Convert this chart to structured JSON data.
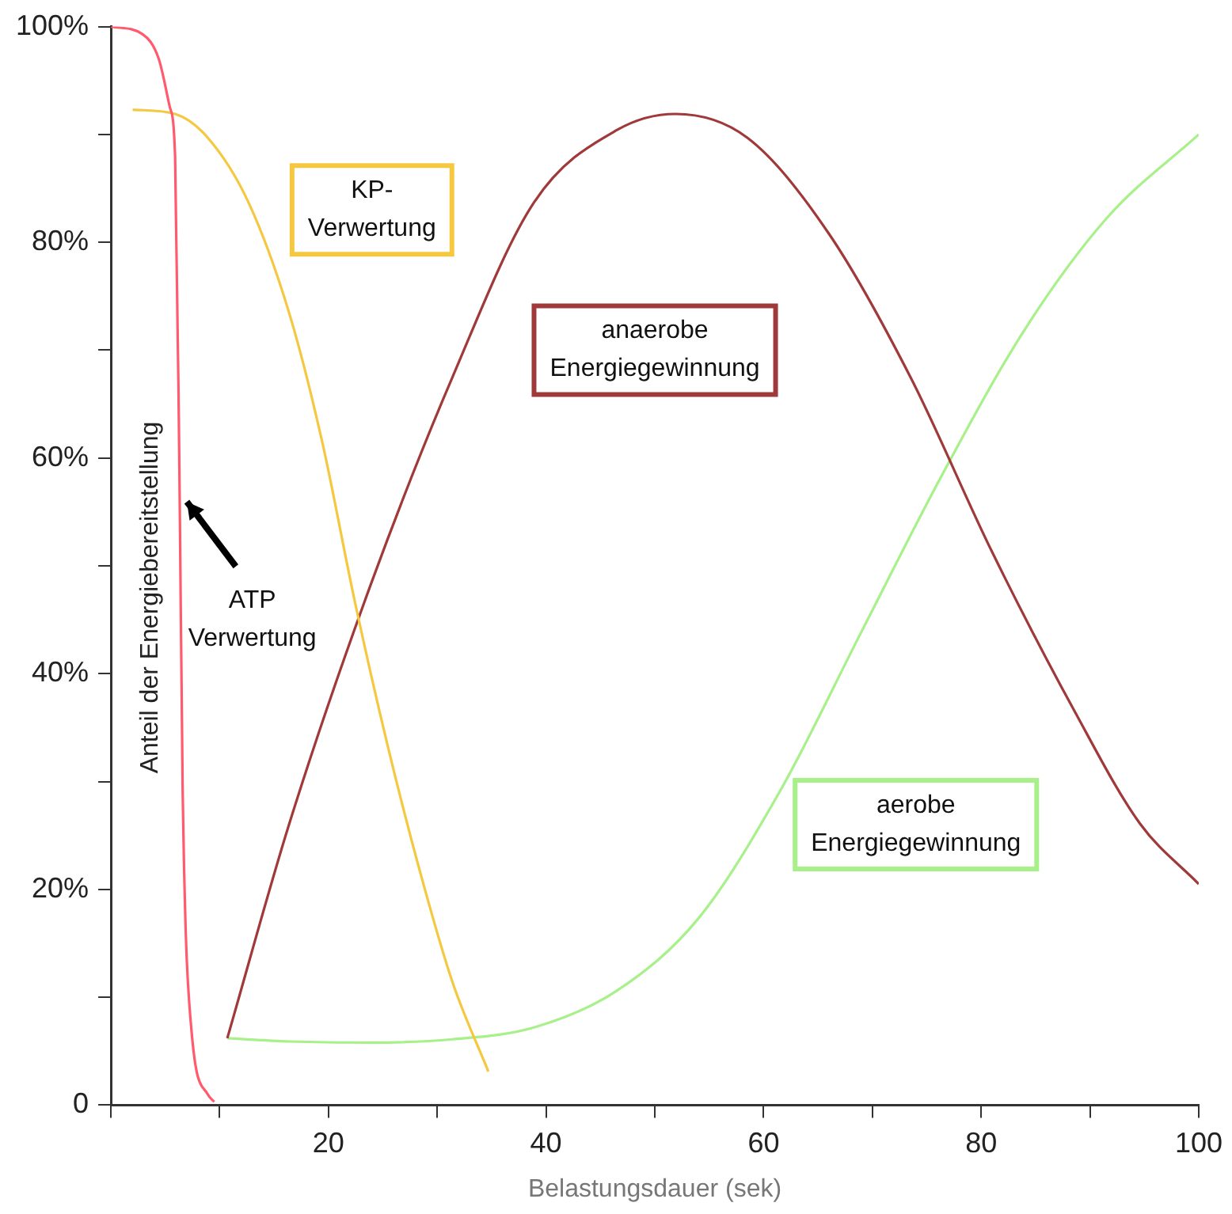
{
  "chart_data": {
    "type": "line",
    "xlabel": "Belastungsdauer (sek)",
    "ylabel": "Anteil der Energiebereitstellung",
    "xlim": [
      0,
      100
    ],
    "xticks": [
      {
        "value": 0,
        "label": null
      },
      {
        "value": 10,
        "label": null
      },
      20,
      {
        "value": 30,
        "label": null
      },
      40,
      {
        "value": 50,
        "label": null
      },
      60,
      {
        "value": 70,
        "label": null
      },
      80,
      {
        "value": 90,
        "label": null
      },
      100
    ],
    "ylim": [
      0,
      100
    ],
    "yticks": [
      {
        "value": 0,
        "label": "0"
      },
      {
        "value": 10,
        "label": null
      },
      {
        "value": 20,
        "label": "20%"
      },
      {
        "value": 30,
        "label": null
      },
      {
        "value": 40,
        "label": "40%"
      },
      {
        "value": 50,
        "label": null
      },
      {
        "value": 60,
        "label": "60%"
      },
      {
        "value": 70,
        "label": null
      },
      {
        "value": 80,
        "label": "80%"
      },
      {
        "value": 90,
        "label": null
      },
      {
        "value": 100,
        "label": "100%"
      }
    ],
    "grid": false,
    "legend": false,
    "marker": "none",
    "line_style": "solid",
    "series": [
      {
        "name": "ATP\nVerwertung",
        "color": "#ff5a6e",
        "x": [
          0,
          2.9,
          4.4,
          5.4,
          5.9,
          6.3,
          6.6,
          7.4,
          8.9,
          9.5
        ],
        "values": [
          100,
          99.3,
          97,
          92.6,
          88,
          58.6,
          29,
          7,
          1,
          0.3
        ]
      },
      {
        "name": "KP-\nVerwertung",
        "color": "#f5c842",
        "x": [
          2,
          5.9,
          8.9,
          12.6,
          16.4,
          19.4,
          22.4,
          25.4,
          28.4,
          31.4,
          34.7
        ],
        "values": [
          92.3,
          91.9,
          89.7,
          83.8,
          73.4,
          61.6,
          46.8,
          33.5,
          21.7,
          11.4,
          3.1
        ]
      },
      {
        "name": "anaerobe\nEnergiegewinnung",
        "color": "#a0393a",
        "x": [
          10.7,
          16.4,
          23.9,
          31.4,
          38.9,
          46.5,
          51.9,
          58.5,
          66,
          73.5,
          81,
          88.6,
          94.6,
          100
        ],
        "values": [
          6.2,
          26.1,
          48.3,
          67.5,
          83.7,
          90.4,
          91.9,
          89.7,
          80.8,
          67.5,
          51.3,
          36.5,
          26.1,
          20.5
        ]
      },
      {
        "name": "aerobe\nEnergiegewinnung",
        "color": "#a8f08a",
        "x": [
          10.7,
          16.4,
          23.9,
          31.4,
          38.9,
          46.5,
          54,
          61.5,
          69,
          76.5,
          84,
          91.6,
          100
        ],
        "values": [
          6.2,
          5.9,
          5.8,
          6.1,
          7.2,
          10.6,
          17.3,
          29.1,
          43.9,
          58.6,
          71.9,
          82.3,
          90
        ]
      }
    ]
  }
}
